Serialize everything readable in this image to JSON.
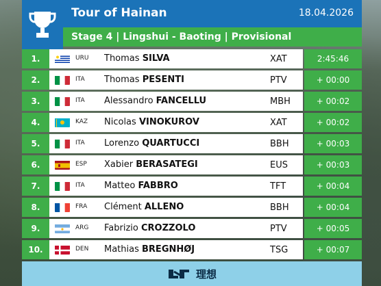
{
  "header": {
    "title": "Tour of Hainan",
    "date": "18.04.2026",
    "stage": "Stage 4 | Lingshui - Baoting | Provisional"
  },
  "colors": {
    "header_blue": "#1b73b8",
    "green": "#3fae49",
    "footer_blue": "#8ed0e8"
  },
  "rows": [
    {
      "pos": "1.",
      "flag": "uruguay",
      "cc": "URU",
      "first": "Thomas",
      "last": "SILVA",
      "team": "XAT",
      "time": "2:45:46"
    },
    {
      "pos": "2.",
      "flag": "italy",
      "cc": "ITA",
      "first": "Thomas",
      "last": "PESENTI",
      "team": "PTV",
      "time": "+ 00:00"
    },
    {
      "pos": "3.",
      "flag": "italy",
      "cc": "ITA",
      "first": "Alessandro",
      "last": "FANCELLU",
      "team": "MBH",
      "time": "+ 00:02"
    },
    {
      "pos": "4.",
      "flag": "kazakhstan",
      "cc": "KAZ",
      "first": "Nicolas",
      "last": "VINOKUROV",
      "team": "XAT",
      "time": "+ 00:02"
    },
    {
      "pos": "5.",
      "flag": "italy",
      "cc": "ITA",
      "first": "Lorenzo",
      "last": "QUARTUCCI",
      "team": "BBH",
      "time": "+ 00:03"
    },
    {
      "pos": "6.",
      "flag": "spain",
      "cc": "ESP",
      "first": "Xabier",
      "last": "BERASATEGI",
      "team": "EUS",
      "time": "+ 00:03"
    },
    {
      "pos": "7.",
      "flag": "italy",
      "cc": "ITA",
      "first": "Matteo",
      "last": "FABBRO",
      "team": "TFT",
      "time": "+ 00:04"
    },
    {
      "pos": "8.",
      "flag": "france",
      "cc": "FRA",
      "first": "Clément",
      "last": "ALLENO",
      "team": "BBH",
      "time": "+ 00:04"
    },
    {
      "pos": "9.",
      "flag": "argentina",
      "cc": "ARG",
      "first": "Fabrizio",
      "last": "CROZZOLO",
      "team": "PTV",
      "time": "+ 00:05"
    },
    {
      "pos": "10.",
      "flag": "denmark",
      "cc": "DEN",
      "first": "Mathias",
      "last": "BREGNHØJ",
      "team": "TSG",
      "time": "+ 00:07"
    }
  ],
  "footer": {
    "sponsor": "理想",
    "icon": "li-auto-logo"
  }
}
